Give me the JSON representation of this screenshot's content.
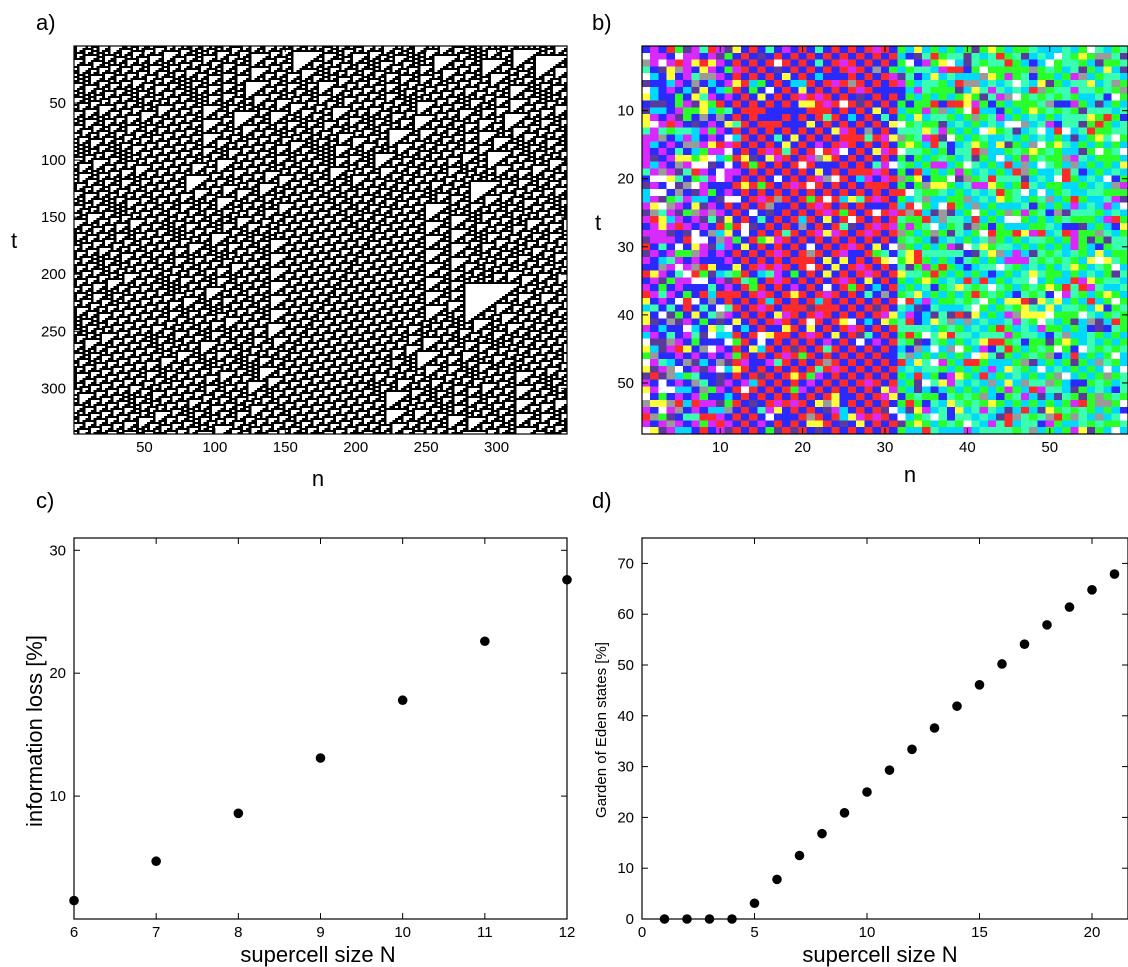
{
  "panel_labels": [
    "a)",
    "b)",
    "c)",
    "d)"
  ],
  "chart_data": [
    {
      "type": "heatmap",
      "panel": "a)",
      "xlabel": "n",
      "ylabel": "t",
      "xticks": [
        50,
        100,
        150,
        200,
        250,
        300
      ],
      "yticks": [
        50,
        100,
        150,
        200,
        250,
        300
      ],
      "xlim": [
        0,
        350
      ],
      "ylim": [
        0,
        340
      ],
      "y_direction": "down",
      "colors": [
        "#000000",
        "#ffffff"
      ]
    },
    {
      "type": "heatmap",
      "panel": "b)",
      "xlabel": "n",
      "ylabel": "t",
      "xticks": [
        10,
        20,
        30,
        40,
        50
      ],
      "yticks": [
        10,
        20,
        30,
        40,
        50
      ],
      "xlim": [
        0.5,
        59.5
      ],
      "ylim": [
        0.5,
        57.5
      ],
      "y_direction": "down",
      "colors": [
        "#ff2a2a",
        "#2aff2a",
        "#2a2aff",
        "#00d8ff",
        "#d82aff",
        "#ffff3a",
        "#ffffff",
        "#9a9a9a",
        "#3affb0",
        "#5a3a9a"
      ]
    },
    {
      "type": "scatter",
      "panel": "c)",
      "xlabel": "supercell size N",
      "ylabel": "information loss [%]",
      "xlim": [
        6,
        12
      ],
      "ylim": [
        0,
        31
      ],
      "xticks": [
        6,
        7,
        8,
        9,
        10,
        11,
        12
      ],
      "yticks": [
        10,
        20,
        30
      ],
      "x": [
        6,
        7,
        8,
        9,
        10,
        11,
        12
      ],
      "y": [
        1.5,
        4.7,
        8.6,
        13.1,
        17.8,
        22.6,
        27.6
      ]
    },
    {
      "type": "scatter",
      "panel": "d)",
      "xlabel": "supercell size N",
      "ylabel": "Garden of Eden states [%]",
      "xlim": [
        0,
        21.6
      ],
      "ylim": [
        0,
        75
      ],
      "xticks": [
        0,
        5,
        10,
        15,
        20
      ],
      "yticks": [
        0,
        10,
        20,
        30,
        40,
        50,
        60,
        70
      ],
      "x": [
        1,
        2,
        3,
        4,
        5,
        6,
        7,
        8,
        9,
        10,
        11,
        12,
        13,
        14,
        15,
        16,
        17,
        18,
        19,
        20,
        21
      ],
      "y": [
        0,
        0,
        0,
        0,
        3.1,
        7.8,
        12.5,
        16.8,
        20.9,
        25.0,
        29.3,
        33.4,
        37.6,
        41.9,
        46.1,
        50.2,
        54.1,
        57.9,
        61.4,
        64.8,
        67.9
      ]
    }
  ]
}
